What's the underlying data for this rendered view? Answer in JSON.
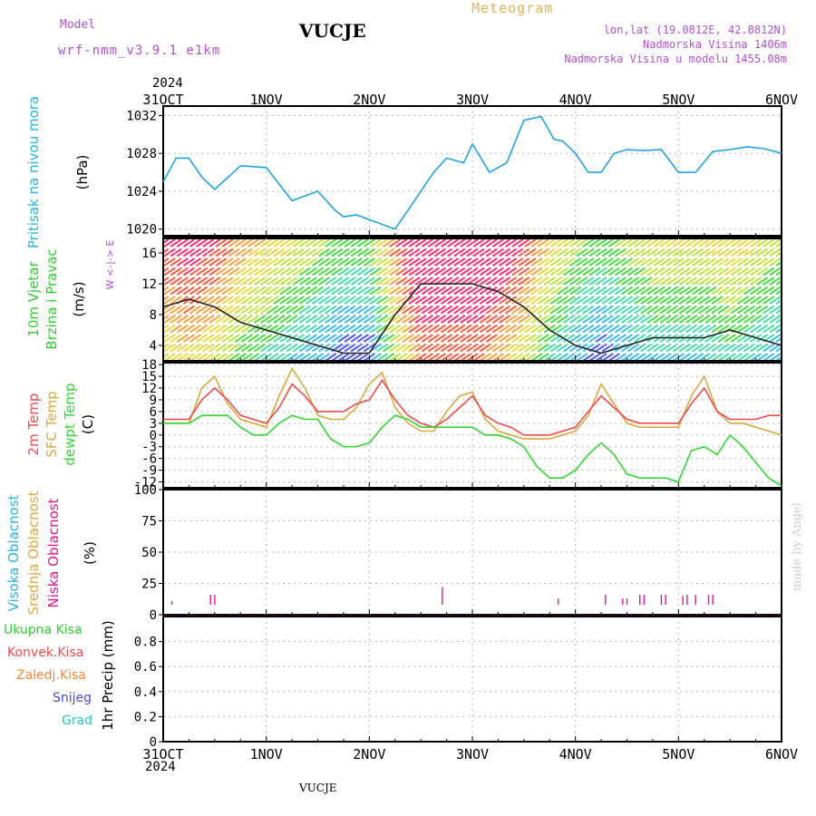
{
  "header": {
    "title": "VUCJE",
    "subtitle": "Meteogram",
    "model_label": "Model",
    "model_run": "wrf-nmm_v3.9.1 e1km",
    "location": "lon,lat (19.0812E, 42.8812N)",
    "elevation": "Nadmorska Visina 1406m",
    "model_elevation": "Nadmorska Visina u modelu 1455.08m"
  },
  "footer": {
    "station": "VUCJE",
    "credit": "made by Angel"
  },
  "time_axis": {
    "year": "2024",
    "ticks": [
      "31OCT",
      "1NOV",
      "2NOV",
      "3NOV",
      "4NOV",
      "5NOV",
      "6NOV"
    ]
  },
  "colors": {
    "pressure": "#1fa3e6",
    "wind_speed": "#222222",
    "temp_2m": "#f04a4a",
    "sfc_temp": "#d9a941",
    "dewpt": "#33d633",
    "cloud_low": "#e0198f",
    "cloud_mid": "#e6a640",
    "cloud_high": "#27b3e3",
    "grid": "#b5b5b5"
  },
  "panels": {
    "pressure": {
      "label": "Pritisak na nivou mora",
      "unit": "(hPa)"
    },
    "wind": {
      "label1": "10m Vjetar",
      "label2": "Brzina i Pravac",
      "unit": "(m/s)",
      "compass": "W <-|-> E"
    },
    "temp": {
      "label_2m": "2m Temp",
      "label_sfc": "SFC Temp",
      "label_dew": "dewpt Temp",
      "unit": "(C)"
    },
    "cloud": {
      "label_high": "Visoka Oblacnost",
      "label_mid": "Srednja Oblacnost",
      "label_low": "Niska Oblacnost",
      "unit": "(%)"
    },
    "precip": {
      "label": "1hr Precip (mm)",
      "legend": [
        "Ukupna Kisa",
        "Konvek.Kisa",
        "Zaledj.Kisa",
        "Snijeg",
        "Grad"
      ],
      "legend_colors": [
        "#33cc33",
        "#f04a4a",
        "#f08a3a",
        "#4b4bdb",
        "#27c4c4"
      ]
    }
  },
  "chart_data": [
    {
      "type": "line",
      "title": "Pritisak na nivou mora",
      "ylabel": "(hPa)",
      "ylim": [
        1019.3,
        1033
      ],
      "yticks": [
        1020,
        1024,
        1028,
        1032
      ],
      "x_hours": [
        0,
        3,
        6,
        9,
        12,
        18,
        24,
        30,
        36,
        40,
        42,
        45,
        48,
        54,
        60,
        63,
        66,
        70,
        72,
        76,
        80,
        84,
        88,
        91,
        93,
        96,
        99,
        102,
        105,
        108,
        112,
        116,
        120,
        124,
        128,
        132,
        136,
        140,
        144
      ],
      "series": [
        {
          "name": "Pritisak na nivou mora",
          "values": [
            1025.0,
            1027.5,
            1027.5,
            1025.5,
            1024.2,
            1026.7,
            1026.5,
            1023.0,
            1024.0,
            1022.0,
            1021.3,
            1021.5,
            1021.0,
            1020.0,
            1024.0,
            1026.0,
            1027.5,
            1027.0,
            1029.0,
            1026.0,
            1027.0,
            1031.5,
            1031.9,
            1029.5,
            1029.3,
            1028.0,
            1026.0,
            1026.0,
            1028.0,
            1028.4,
            1028.3,
            1028.4,
            1026.0,
            1026.0,
            1028.2,
            1028.4,
            1028.7,
            1028.5,
            1028.0
          ]
        }
      ]
    },
    {
      "type": "line",
      "title": "10m Vjetar Brzina i Pravac",
      "ylabel": "(m/s)",
      "ylim": [
        2,
        18
      ],
      "yticks": [
        4,
        8,
        12,
        16
      ],
      "x_hours": [
        0,
        6,
        12,
        18,
        24,
        30,
        36,
        42,
        48,
        54,
        60,
        66,
        72,
        78,
        84,
        90,
        96,
        102,
        108,
        114,
        120,
        126,
        132,
        138,
        144
      ],
      "series": [
        {
          "name": "10m Vjetar",
          "values": [
            9,
            10,
            9,
            7,
            6,
            5,
            4,
            3,
            3,
            8,
            12,
            12,
            12,
            11,
            9,
            6,
            4,
            3,
            4,
            5,
            5,
            5,
            6,
            5,
            4
          ]
        }
      ]
    },
    {
      "type": "line",
      "title": "2m Temp / SFC Temp / dewpt Temp",
      "ylabel": "(C)",
      "ylim": [
        -13.5,
        18.5
      ],
      "yticks": [
        18,
        15,
        12,
        9,
        6,
        3,
        0,
        -3,
        -6,
        -9,
        -12
      ],
      "x_hours": [
        0,
        3,
        6,
        9,
        12,
        15,
        18,
        21,
        24,
        27,
        30,
        33,
        36,
        39,
        42,
        45,
        48,
        51,
        54,
        57,
        60,
        63,
        66,
        69,
        72,
        75,
        78,
        81,
        84,
        87,
        90,
        93,
        96,
        99,
        102,
        105,
        108,
        111,
        114,
        117,
        120,
        123,
        126,
        129,
        132,
        135,
        138,
        141,
        144
      ],
      "series": [
        {
          "name": "2m Temp",
          "values": [
            4,
            4,
            4,
            9,
            12,
            9,
            5,
            4,
            3,
            7,
            13,
            10,
            6,
            6,
            6,
            8,
            9,
            14,
            9,
            5,
            3,
            2,
            4,
            7,
            10,
            5,
            3,
            2,
            0,
            0,
            0,
            1,
            2,
            6,
            10,
            7,
            4,
            3,
            3,
            3,
            3,
            8,
            12,
            6,
            4,
            4,
            4,
            5,
            5
          ]
        },
        {
          "name": "SFC Temp",
          "values": [
            3,
            3,
            3,
            12,
            15,
            8,
            4,
            3,
            2,
            10,
            17,
            12,
            5,
            4,
            4,
            7,
            13,
            16,
            7,
            3,
            1,
            1,
            6,
            10,
            11,
            4,
            1,
            0,
            -1,
            -1,
            -1,
            0,
            1,
            5,
            13,
            8,
            3,
            2,
            2,
            2,
            2,
            10,
            15,
            6,
            3,
            3,
            2,
            1,
            0
          ]
        },
        {
          "name": "dewpt Temp",
          "values": [
            3,
            3,
            3,
            5,
            5,
            5,
            2,
            0,
            0,
            3,
            5,
            4,
            4,
            -1,
            -3,
            -3,
            -2,
            2,
            5,
            4,
            2,
            2,
            2,
            2,
            2,
            0,
            0,
            -1,
            -3,
            -8,
            -11,
            -11,
            -9,
            -5,
            -2,
            -5,
            -10,
            -11,
            -11,
            -11,
            -12,
            -4,
            -3,
            -5,
            0,
            -3,
            -7,
            -11,
            -13
          ]
        }
      ]
    },
    {
      "type": "bar",
      "title": "Visoka / Srednja / Niska Oblacnost",
      "ylabel": "(%)",
      "ylim": [
        0,
        100
      ],
      "yticks": [
        0,
        25,
        50,
        75,
        100
      ],
      "x_hours": [
        2,
        11,
        12,
        65,
        92,
        103,
        107,
        108,
        111,
        112,
        116,
        117,
        121,
        122,
        124,
        127,
        128
      ],
      "series": [
        {
          "name": "Niska Oblacnost",
          "values": [
            3,
            8,
            8,
            14,
            5,
            8,
            5,
            5,
            8,
            8,
            8,
            8,
            7,
            8,
            8,
            8,
            8
          ]
        }
      ]
    },
    {
      "type": "bar",
      "title": "1hr Precip (mm)",
      "ylabel": "1hr Precip (mm)",
      "ylim": [
        0,
        1
      ],
      "yticks": [
        0,
        0.2,
        0.4,
        0.6,
        0.8
      ],
      "x_hours": [],
      "series": [
        {
          "name": "Ukupna Kisa",
          "values": []
        }
      ]
    }
  ]
}
